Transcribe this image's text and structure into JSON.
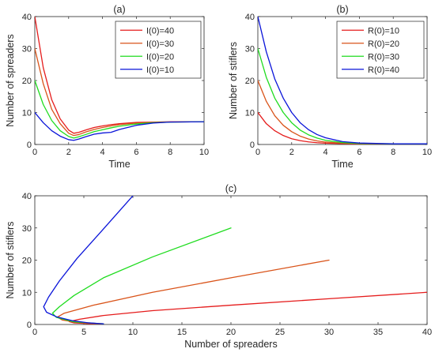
{
  "colors": {
    "red": "#e51c1c",
    "orange": "#d95319",
    "green": "#1fdc1f",
    "blue": "#0a14d9"
  },
  "chart_data": [
    {
      "type": "line",
      "title": "(a)",
      "xlabel": "Time",
      "ylabel": "Number of spreaders",
      "xlim": [
        0,
        10
      ],
      "ylim": [
        0,
        40
      ],
      "xticks": [
        0,
        2,
        4,
        6,
        8,
        10
      ],
      "yticks": [
        0,
        10,
        20,
        30,
        40
      ],
      "legend_position": "top-right",
      "series": [
        {
          "name": "I(0)=40",
          "color": "red",
          "x": [
            0,
            0.5,
            1,
            1.5,
            2,
            2.3,
            2.6,
            3,
            3.5,
            4,
            4.5,
            5,
            6,
            7,
            8,
            10
          ],
          "y": [
            40,
            24,
            14,
            8,
            4.5,
            3.5,
            3.8,
            4.5,
            5.3,
            5.8,
            6.2,
            6.5,
            6.9,
            7.0,
            7.1,
            7.1
          ]
        },
        {
          "name": "I(0)=30",
          "color": "orange",
          "x": [
            0,
            0.5,
            1,
            1.5,
            2,
            2.3,
            2.6,
            3,
            3.5,
            4,
            4.5,
            5,
            6,
            7,
            8,
            10
          ],
          "y": [
            30,
            19,
            11,
            6.5,
            3.5,
            2.8,
            3.1,
            3.9,
            4.7,
            5.3,
            5.8,
            6.2,
            6.7,
            6.9,
            7.0,
            7.1
          ]
        },
        {
          "name": "I(0)=20",
          "color": "green",
          "x": [
            0,
            0.5,
            1,
            1.5,
            2,
            2.3,
            2.6,
            3,
            3.5,
            4,
            4.5,
            5,
            6,
            7,
            8,
            10
          ],
          "y": [
            20,
            12.5,
            7.5,
            4.3,
            2.5,
            2.0,
            2.4,
            3.1,
            4.0,
            4.6,
            5.2,
            5.7,
            6.4,
            6.8,
            7.0,
            7.1
          ]
        },
        {
          "name": "I(0)=10",
          "color": "blue",
          "x": [
            0,
            0.5,
            1,
            1.5,
            2,
            2.3,
            2.6,
            3,
            3.5,
            4,
            4.5,
            5,
            6,
            7,
            8,
            10
          ],
          "y": [
            10,
            6.8,
            4.3,
            2.6,
            1.5,
            1.3,
            1.7,
            2.4,
            3.2,
            3.6,
            3.8,
            4.7,
            6.0,
            6.7,
            7.0,
            7.1
          ]
        }
      ]
    },
    {
      "type": "line",
      "title": "(b)",
      "xlabel": "Time",
      "ylabel": "Number of stiflers",
      "xlim": [
        0,
        10
      ],
      "ylim": [
        0,
        40
      ],
      "xticks": [
        0,
        2,
        4,
        6,
        8,
        10
      ],
      "yticks": [
        0,
        10,
        20,
        30,
        40
      ],
      "legend_position": "top-right",
      "series": [
        {
          "name": "R(0)=10",
          "color": "red",
          "x": [
            0,
            0.5,
            1,
            1.5,
            2,
            2.5,
            3,
            3.5,
            4,
            5,
            6,
            8,
            10
          ],
          "y": [
            10,
            6.5,
            4.3,
            2.8,
            1.8,
            1.2,
            0.8,
            0.55,
            0.4,
            0.25,
            0.2,
            0.2,
            0.2
          ]
        },
        {
          "name": "R(0)=20",
          "color": "orange",
          "x": [
            0,
            0.5,
            1,
            1.5,
            2,
            2.5,
            3,
            3.5,
            4,
            5,
            6,
            8,
            10
          ],
          "y": [
            20,
            13.5,
            9.0,
            6.0,
            4.0,
            2.6,
            1.7,
            1.1,
            0.75,
            0.4,
            0.25,
            0.2,
            0.2
          ]
        },
        {
          "name": "R(0)=30",
          "color": "green",
          "x": [
            0,
            0.5,
            1,
            1.5,
            2,
            2.5,
            3,
            3.5,
            4,
            5,
            6,
            8,
            10
          ],
          "y": [
            30,
            21,
            14.5,
            10,
            6.8,
            4.5,
            3.0,
            2.0,
            1.3,
            0.6,
            0.3,
            0.2,
            0.2
          ]
        },
        {
          "name": "R(0)=40",
          "color": "blue",
          "x": [
            0,
            0.5,
            1,
            1.5,
            2,
            2.5,
            3,
            3.5,
            4,
            5,
            6,
            8,
            10
          ],
          "y": [
            40,
            29,
            20.5,
            14.5,
            10,
            6.8,
            4.6,
            3.1,
            2.1,
            0.9,
            0.45,
            0.2,
            0.2
          ]
        }
      ]
    },
    {
      "type": "line",
      "title": "(c)",
      "xlabel": "Number of spreaders",
      "ylabel": "Number of stiflers",
      "xlim": [
        0,
        40
      ],
      "ylim": [
        0,
        40
      ],
      "xticks": [
        0,
        5,
        10,
        15,
        20,
        25,
        30,
        35,
        40
      ],
      "yticks": [
        0,
        10,
        20,
        30,
        40
      ],
      "series": [
        {
          "color": "red",
          "x": [
            40,
            30,
            20,
            12,
            7,
            4.5,
            3.5,
            4,
            5.5,
            7
          ],
          "y": [
            10,
            8,
            6,
            4.3,
            2.8,
            1.6,
            0.9,
            0.5,
            0.25,
            0.2
          ]
        },
        {
          "color": "orange",
          "x": [
            30,
            20,
            12,
            6,
            3,
            2.3,
            2.8,
            4.5,
            7
          ],
          "y": [
            20,
            14.5,
            10,
            6,
            3.5,
            2.3,
            1.4,
            0.6,
            0.2
          ]
        },
        {
          "color": "green",
          "x": [
            20,
            12,
            7,
            4,
            2.5,
            1.8,
            2.2,
            4,
            7
          ],
          "y": [
            30,
            21,
            14.5,
            9,
            5.5,
            3.5,
            2.2,
            0.8,
            0.2
          ]
        },
        {
          "color": "blue",
          "x": [
            10,
            6.8,
            4.3,
            2.5,
            1.4,
            0.9,
            1.2,
            2.2,
            3.8,
            5.5,
            7
          ],
          "y": [
            40,
            29,
            20.5,
            13.5,
            8.5,
            5.5,
            3.8,
            2.4,
            1.2,
            0.5,
            0.2
          ]
        }
      ]
    }
  ]
}
